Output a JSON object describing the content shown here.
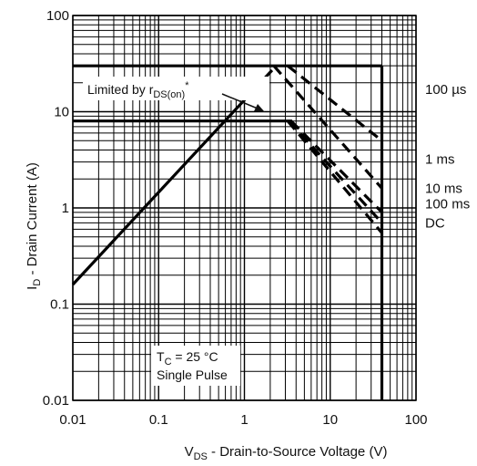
{
  "chart_data": {
    "type": "line",
    "xscale": "log",
    "yscale": "log",
    "xlim": [
      0.01,
      100
    ],
    "ylim": [
      0.01,
      100
    ],
    "grid": true,
    "xlabel": "V_DS - Drain-to-Source Voltage (V)",
    "ylabel": "I_D - Drain Current (A)",
    "x_ticks": [
      {
        "value": 0.01,
        "label": "0.01"
      },
      {
        "value": 0.1,
        "label": "0.1"
      },
      {
        "value": 1,
        "label": "1"
      },
      {
        "value": 10,
        "label": "10"
      },
      {
        "value": 100,
        "label": "100"
      }
    ],
    "y_ticks": [
      {
        "value": 0.01,
        "label": "0.01"
      },
      {
        "value": 0.1,
        "label": "0.1"
      },
      {
        "value": 1,
        "label": "1"
      },
      {
        "value": 10,
        "label": "10"
      },
      {
        "value": 100,
        "label": "100"
      }
    ],
    "rds_on_limit": {
      "label": "Limited by r",
      "label_sub": "DS(on)",
      "label_sup": "*",
      "points": [
        [
          0.01,
          0.16
        ],
        [
          2.1,
          27
        ]
      ]
    },
    "max_current_line": {
      "points": [
        [
          0.01,
          30
        ],
        [
          40,
          30
        ]
      ]
    },
    "max_voltage_line": {
      "points": [
        [
          40,
          30
        ],
        [
          40,
          0.01
        ]
      ]
    },
    "dc_current_line": {
      "points": [
        [
          0.01,
          8
        ],
        [
          3.6,
          8
        ]
      ]
    },
    "series": [
      {
        "name": "100 µs",
        "style": "dashed",
        "points": [
          [
            3.2,
            30
          ],
          [
            40,
            5
          ]
        ]
      },
      {
        "name": "1 ms",
        "style": "dashed",
        "points": [
          [
            2.2,
            30
          ],
          [
            40,
            1.6
          ]
        ]
      },
      {
        "name": "10 ms",
        "style": "dashed",
        "points": [
          [
            3.5,
            8
          ],
          [
            40,
            0.9
          ]
        ]
      },
      {
        "name": "100 ms",
        "style": "dashed",
        "points": [
          [
            3.3,
            8
          ],
          [
            40,
            0.7
          ]
        ]
      },
      {
        "name": "DC",
        "style": "dashed",
        "points": [
          [
            3.2,
            8
          ],
          [
            40,
            0.55
          ]
        ]
      }
    ],
    "conditions": {
      "line1_main": "T",
      "line1_sub": "C",
      "line1_rest": " = 25 °C",
      "line2": "Single Pulse"
    }
  },
  "axis_text": {
    "x_main": "V",
    "x_sub": "DS",
    "x_rest": " - Drain-to-Source Voltage (V)",
    "y_main": "I",
    "y_sub": "D",
    "y_rest": " - Drain Current (A)"
  }
}
